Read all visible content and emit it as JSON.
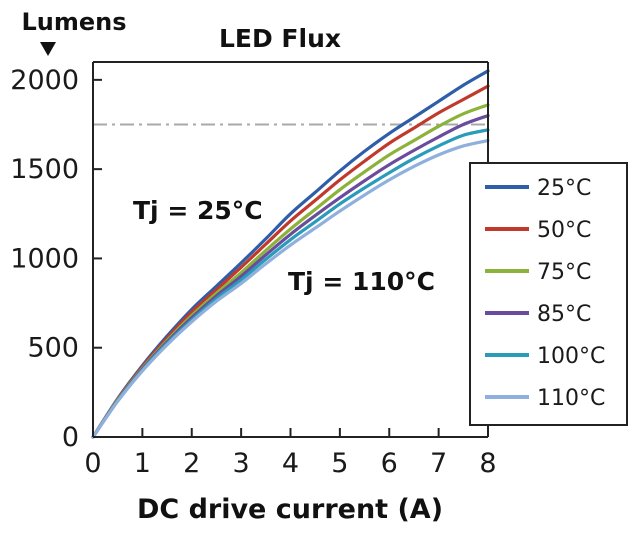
{
  "chart_data": {
    "type": "line",
    "title": "LED Flux",
    "ylabel": "Lumens",
    "xlabel": "DC drive current (A)",
    "xlim": [
      0,
      8
    ],
    "ylim": [
      0,
      2100
    ],
    "x_ticks": [
      "0",
      "1",
      "2",
      "3",
      "4",
      "5",
      "6",
      "7",
      "8"
    ],
    "y_ticks": [
      "0",
      "500",
      "1000",
      "1500",
      "2000"
    ],
    "x_tick_values": [
      0,
      1,
      2,
      3,
      4,
      5,
      6,
      7,
      8
    ],
    "y_tick_values": [
      0,
      500,
      1000,
      1500,
      2000
    ],
    "reference_line": {
      "y": 1750,
      "style": "dash-dot",
      "color": "#a8a8a8"
    },
    "annotations": [
      {
        "text": "Tj = 25°C",
        "x": 0.8,
        "y": 1260
      },
      {
        "text": "Tj = 110°C",
        "x": 4.0,
        "y": 820
      }
    ],
    "legend_position": "right",
    "x": [
      0,
      0.5,
      1,
      1.5,
      2,
      2.5,
      3,
      3.5,
      4,
      4.5,
      5,
      5.5,
      6,
      6.5,
      7,
      7.5,
      8
    ],
    "series": [
      {
        "name": "25°C",
        "color": "#2e5ea8",
        "values": [
          0,
          215,
          400,
          565,
          715,
          845,
          975,
          1110,
          1250,
          1370,
          1490,
          1600,
          1700,
          1790,
          1880,
          1970,
          2050
        ]
      },
      {
        "name": "50°C",
        "color": "#c0392b",
        "values": [
          0,
          212,
          393,
          553,
          700,
          825,
          950,
          1080,
          1210,
          1325,
          1440,
          1545,
          1645,
          1730,
          1815,
          1890,
          1965
        ]
      },
      {
        "name": "75°C",
        "color": "#8bb33a",
        "values": [
          0,
          208,
          385,
          540,
          680,
          805,
          920,
          1045,
          1165,
          1275,
          1385,
          1485,
          1580,
          1660,
          1740,
          1810,
          1860
        ]
      },
      {
        "name": "85°C",
        "color": "#6a4c9c",
        "values": [
          0,
          205,
          380,
          532,
          668,
          790,
          900,
          1020,
          1135,
          1240,
          1340,
          1435,
          1525,
          1605,
          1680,
          1750,
          1800
        ]
      },
      {
        "name": "100°C",
        "color": "#2a9bb8",
        "values": [
          0,
          203,
          375,
          524,
          655,
          775,
          880,
          995,
          1105,
          1205,
          1305,
          1395,
          1480,
          1560,
          1630,
          1690,
          1720
        ]
      },
      {
        "name": "110°C",
        "color": "#8fb0dd",
        "values": [
          0,
          200,
          370,
          516,
          645,
          760,
          860,
          970,
          1075,
          1170,
          1265,
          1355,
          1440,
          1515,
          1580,
          1630,
          1660
        ]
      }
    ]
  }
}
